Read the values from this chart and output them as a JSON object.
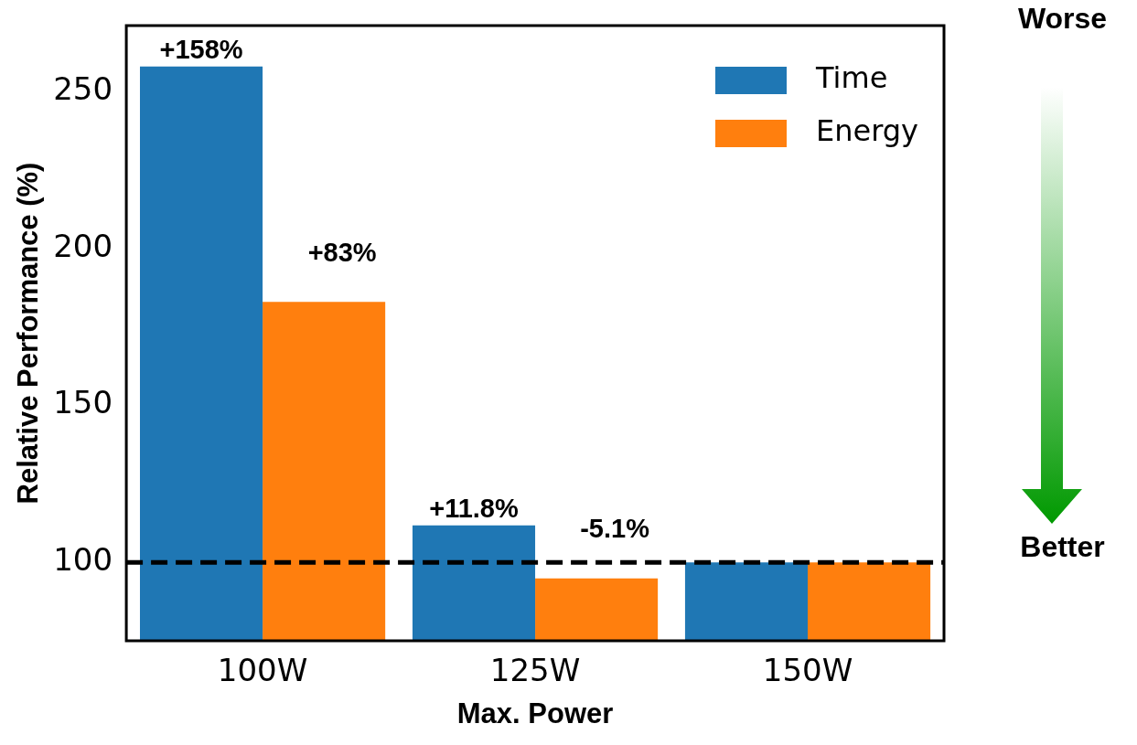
{
  "chart_data": {
    "type": "bar",
    "xlabel": "Max. Power",
    "ylabel": "Relative Performance (%)",
    "categories": [
      "100W",
      "125W",
      "150W"
    ],
    "series": [
      {
        "name": "Time",
        "color": "#1f77b4",
        "values": [
          258,
          111.8,
          100
        ]
      },
      {
        "name": "Energy",
        "color": "#ff7f0e",
        "values": [
          183,
          94.9,
          100
        ]
      }
    ],
    "ylim": [
      75,
      271
    ],
    "yticks": [
      100,
      150,
      200,
      250
    ],
    "grid": false,
    "legend": "top right",
    "ref_lines": [
      {
        "axis": "y",
        "value": 100,
        "color": "#000000",
        "line_style": "dashed"
      }
    ],
    "annotations": [
      "Worse",
      "Better",
      {
        "text": "+158%",
        "x": "100W",
        "y": 258
      },
      {
        "text": "+83%",
        "x": "100W",
        "y": 183
      },
      {
        "text": "+11.8%",
        "x": "125W",
        "y": 111.8
      },
      {
        "text": "-5.1%",
        "x": "125W",
        "y": 94.9
      }
    ]
  }
}
